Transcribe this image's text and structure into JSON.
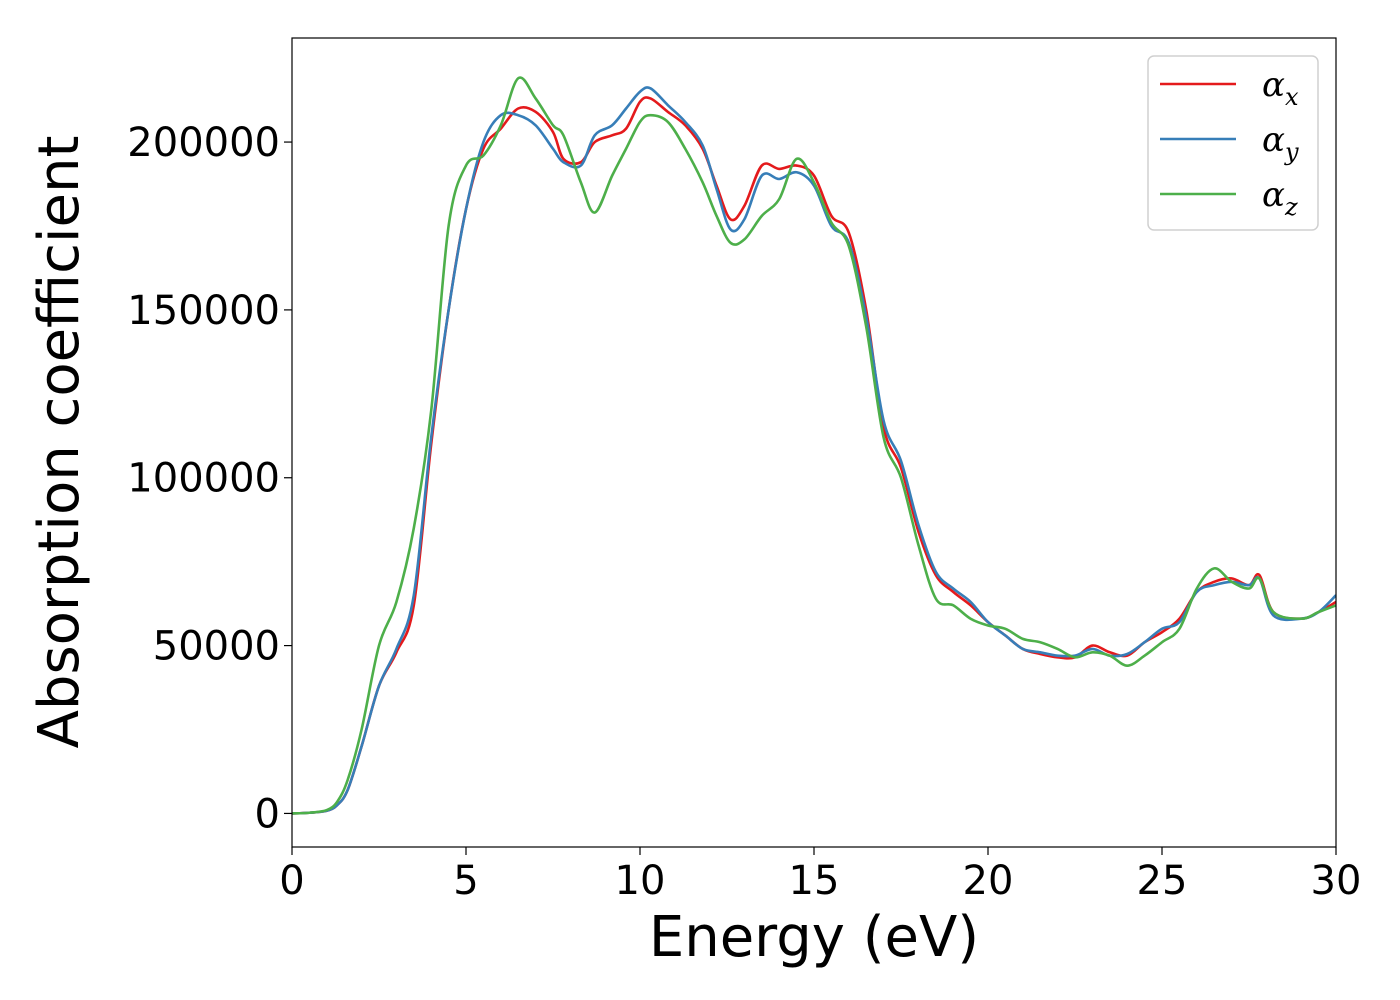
{
  "chart_data": {
    "type": "line",
    "xlabel": "Energy (eV)",
    "ylabel": "Absorption coefficient",
    "xlim": [
      0,
      30
    ],
    "ylim": [
      -10000,
      231000
    ],
    "xticks": [
      0,
      5,
      10,
      15,
      20,
      25,
      30
    ],
    "xtick_labels": [
      "0",
      "5",
      "10",
      "15",
      "20",
      "25",
      "30"
    ],
    "yticks": [
      0,
      50000,
      100000,
      150000,
      200000
    ],
    "ytick_labels": [
      "0",
      "50000",
      "100000",
      "150000",
      "200000"
    ],
    "grid": false,
    "legend_position": "top-right",
    "series": [
      {
        "name": "αx",
        "symbol": "α",
        "subscript": "x",
        "color": "#e41a1c",
        "x": [
          0,
          0.5,
          1,
          1.3,
          1.6,
          2,
          2.5,
          3,
          3.5,
          4,
          4.5,
          5,
          5.5,
          6,
          6.5,
          7,
          7.5,
          7.8,
          8.3,
          8.7,
          9.2,
          9.6,
          10,
          10.3,
          10.8,
          11.3,
          11.8,
          12.2,
          12.6,
          13,
          13.5,
          14,
          14.5,
          15,
          15.5,
          16,
          16.5,
          17,
          17.5,
          18,
          18.5,
          19,
          19.5,
          20,
          20.5,
          21,
          21.5,
          22,
          22.5,
          23,
          23.5,
          24,
          24.5,
          25,
          25.5,
          26,
          26.5,
          27,
          27.5,
          27.8,
          28.2,
          29,
          29.5,
          30
        ],
        "y": [
          0,
          200,
          800,
          2500,
          7000,
          20000,
          38000,
          48000,
          62000,
          110000,
          150000,
          180000,
          198000,
          204000,
          210000,
          209000,
          203000,
          195000,
          194000,
          200000,
          202000,
          204000,
          212000,
          213000,
          209000,
          205000,
          198000,
          187000,
          177000,
          181000,
          193000,
          192000,
          193000,
          190000,
          178000,
          173000,
          150000,
          115000,
          103000,
          84000,
          71000,
          66000,
          62000,
          57000,
          53000,
          49000,
          47500,
          46500,
          46500,
          50000,
          48000,
          47000,
          51000,
          54000,
          58000,
          66000,
          69000,
          70000,
          68000,
          71000,
          60000,
          58000,
          60000,
          63000
        ]
      },
      {
        "name": "αy",
        "symbol": "α",
        "subscript": "y",
        "color": "#377eb8",
        "x": [
          0,
          0.5,
          1,
          1.3,
          1.6,
          2,
          2.5,
          3,
          3.5,
          4,
          4.5,
          5,
          5.5,
          6,
          6.5,
          7,
          7.5,
          7.8,
          8.3,
          8.7,
          9.2,
          9.6,
          10,
          10.3,
          10.8,
          11.3,
          11.8,
          12.2,
          12.6,
          13,
          13.5,
          14,
          14.5,
          15,
          15.5,
          16,
          16.5,
          17,
          17.5,
          18,
          18.5,
          19,
          19.5,
          20,
          20.5,
          21,
          21.5,
          22,
          22.5,
          23,
          23.5,
          24,
          24.5,
          25,
          25.5,
          26,
          26.5,
          27,
          27.5,
          27.8,
          28.2,
          29,
          29.5,
          30
        ],
        "y": [
          0,
          200,
          800,
          2500,
          7000,
          20000,
          38000,
          49000,
          65000,
          112000,
          150000,
          180000,
          200000,
          208000,
          208000,
          205000,
          198000,
          194000,
          193000,
          202000,
          205000,
          210000,
          215000,
          216000,
          211000,
          206000,
          199000,
          186000,
          174000,
          177000,
          190000,
          189000,
          191000,
          187000,
          175000,
          170000,
          148000,
          117000,
          105000,
          86000,
          72000,
          67000,
          63000,
          57000,
          53000,
          49000,
          48000,
          47000,
          47000,
          49000,
          47000,
          47500,
          51000,
          55000,
          57000,
          66000,
          68000,
          69000,
          68000,
          70000,
          59000,
          58000,
          60000,
          65000
        ]
      },
      {
        "name": "αz",
        "symbol": "α",
        "subscript": "z",
        "color": "#4daf4a",
        "x": [
          0,
          0.5,
          1,
          1.3,
          1.6,
          2,
          2.5,
          3,
          3.5,
          4,
          4.5,
          5,
          5.5,
          6,
          6.5,
          7,
          7.5,
          7.8,
          8.3,
          8.7,
          9.2,
          9.6,
          10,
          10.3,
          10.8,
          11.3,
          11.8,
          12.2,
          12.6,
          13,
          13.5,
          14,
          14.5,
          15,
          15.5,
          16,
          16.5,
          17,
          17.5,
          18,
          18.5,
          19,
          19.5,
          20,
          20.5,
          21,
          21.5,
          22,
          22.5,
          23,
          23.5,
          24,
          24.5,
          25,
          25.5,
          26,
          26.5,
          27,
          27.5,
          27.8,
          28.2,
          29,
          29.5,
          30
        ],
        "y": [
          0,
          200,
          1000,
          3500,
          10000,
          25000,
          50000,
          63000,
          85000,
          120000,
          175000,
          193000,
          196000,
          205000,
          219000,
          213000,
          205000,
          202000,
          188000,
          179000,
          190000,
          198000,
          206000,
          208000,
          206000,
          198000,
          188000,
          178000,
          170000,
          171000,
          178000,
          183000,
          195000,
          188000,
          176000,
          169000,
          145000,
          112000,
          100000,
          80000,
          64000,
          62000,
          58000,
          56000,
          55000,
          52000,
          51000,
          49000,
          46500,
          48000,
          47000,
          44000,
          47000,
          51000,
          55000,
          67000,
          73000,
          69000,
          67000,
          70000,
          60000,
          58000,
          60000,
          62000
        ]
      }
    ]
  }
}
